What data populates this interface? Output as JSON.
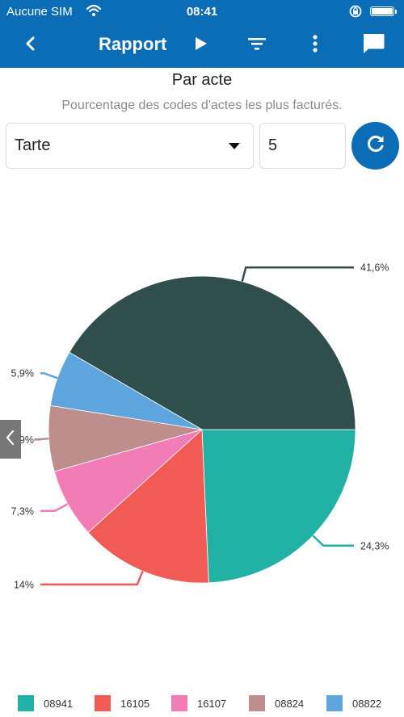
{
  "status_bar": {
    "carrier": "Aucune SIM",
    "time": "08:41"
  },
  "app_bar": {
    "title": "Rapport",
    "icons": [
      "back-icon",
      "play-icon",
      "filter-icon",
      "more-vert-icon",
      "chat-icon"
    ]
  },
  "report": {
    "title": "Par acte",
    "subtitle": "Pourcentage des codes d'actes les plus facturés."
  },
  "controls": {
    "chart_type": "Tarte",
    "top_count": "5",
    "refresh_icon": "refresh-icon"
  },
  "colors": {
    "accent": "#0a6db5",
    "slice_08941": "#21b1a5",
    "slice_16105": "#f15a55",
    "slice_16107": "#f27db6",
    "slice_08824": "#bd8e8b",
    "slice_08822": "#5ea5dd",
    "slice_other": "#304f4c"
  },
  "chart_data": {
    "type": "pie",
    "title": "",
    "slices": [
      {
        "label": "08941",
        "value": 24.3,
        "display": "24,3%",
        "color": "#21b1a5",
        "in_legend": true
      },
      {
        "label": "16105",
        "value": 14,
        "display": "14%",
        "color": "#f15a55",
        "in_legend": true
      },
      {
        "label": "16107",
        "value": 7.3,
        "display": "7,3%",
        "color": "#f27db6",
        "in_legend": true
      },
      {
        "label": "08824",
        "value": 6.9,
        "display": "6,9%",
        "color": "#bd8e8b",
        "in_legend": true
      },
      {
        "label": "08822",
        "value": 5.9,
        "display": "5,9%",
        "color": "#5ea5dd",
        "in_legend": true
      },
      {
        "label": "",
        "value": 41.6,
        "display": "41,6%",
        "color": "#304f4c",
        "in_legend": false
      }
    ],
    "legend_position": "bottom",
    "legend": [
      "08941",
      "16105",
      "16107",
      "08824",
      "08822"
    ]
  }
}
